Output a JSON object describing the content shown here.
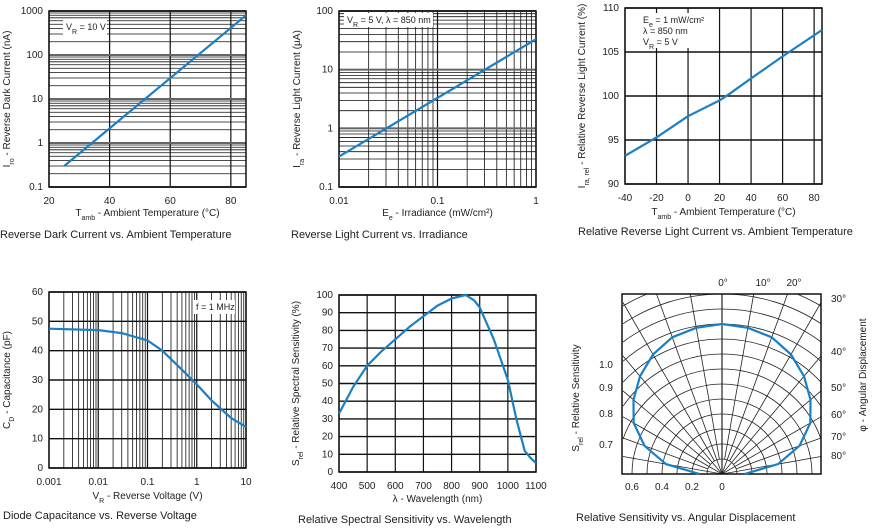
{
  "line_color": "#1b7fc4",
  "chart_data": [
    {
      "type": "line",
      "title": "Reverse Dark Current vs. Ambient Temperature",
      "xlabel": [
        {
          "t": "T"
        },
        {
          "t": "amb",
          "sub": true
        },
        {
          "t": " - Ambient Temperature (°C)"
        }
      ],
      "ylabel": [
        {
          "t": "I"
        },
        {
          "t": "ro",
          "sub": true
        },
        {
          "t": " - Reverse Dark Current (nA)"
        }
      ],
      "annotation": [
        [
          {
            "t": "V"
          },
          {
            "t": "R",
            "sub": true
          },
          {
            "t": " = 10 V"
          }
        ]
      ],
      "xscale": "linear",
      "yscale": "log",
      "xlim": [
        20,
        85
      ],
      "ylim": [
        0.1,
        1000
      ],
      "xticks": [
        20,
        40,
        60,
        80
      ],
      "xtick_labels": [
        "20",
        "40",
        "60",
        "80"
      ],
      "yticks": [
        0.1,
        1,
        10,
        100,
        1000
      ],
      "ytick_labels": [
        "0.1",
        "1",
        "10",
        "100",
        "1000"
      ],
      "grid": true,
      "x": [
        25,
        85
      ],
      "y": [
        0.3,
        800
      ]
    },
    {
      "type": "line",
      "title": "Reverse Light Current vs. Irradiance",
      "xlabel": [
        {
          "t": "E"
        },
        {
          "t": "e",
          "sub": true
        },
        {
          "t": " - Irradiance (mW/cm²)"
        }
      ],
      "ylabel": [
        {
          "t": "I"
        },
        {
          "t": "ra",
          "sub": true
        },
        {
          "t": " - Reverse Light Current (µA)"
        }
      ],
      "annotation": [
        [
          {
            "t": "V"
          },
          {
            "t": "R",
            "sub": true
          },
          {
            "t": " = 5 V, λ = 850 nm"
          }
        ]
      ],
      "xscale": "log",
      "yscale": "log",
      "xlim": [
        0.01,
        1
      ],
      "ylim": [
        0.1,
        100
      ],
      "xticks": [
        0.01,
        0.1,
        1
      ],
      "xtick_labels": [
        "0.01",
        "0.1",
        "1"
      ],
      "yticks": [
        0.1,
        1,
        10,
        100
      ],
      "ytick_labels": [
        "0.1",
        "1",
        "10",
        "100"
      ],
      "grid": true,
      "x": [
        0.01,
        1
      ],
      "y": [
        0.33,
        33
      ]
    },
    {
      "type": "line",
      "title": "Relative Reverse Light Current vs. Ambient Temperature",
      "xlabel": [
        {
          "t": "T"
        },
        {
          "t": "amb",
          "sub": true
        },
        {
          "t": " - Ambient Temperature (°C)"
        }
      ],
      "ylabel": [
        {
          "t": "I"
        },
        {
          "t": "ra, rel",
          "sub": true
        },
        {
          "t": " - Relative Reverse Light Current (%)"
        }
      ],
      "annotation": [
        [
          {
            "t": "E"
          },
          {
            "t": "e",
            "sub": true
          },
          {
            "t": " = 1 mW/cm²"
          }
        ],
        [
          {
            "t": "λ = 850 nm"
          }
        ],
        [
          {
            "t": "V"
          },
          {
            "t": "R",
            "sub": true
          },
          {
            "t": " = 5 V"
          }
        ]
      ],
      "xscale": "linear",
      "yscale": "linear",
      "xlim": [
        -40,
        85
      ],
      "ylim": [
        90,
        110
      ],
      "xticks": [
        -40,
        -20,
        0,
        20,
        40,
        60,
        80
      ],
      "xtick_labels": [
        "-40",
        "-20",
        "0",
        "20",
        "40",
        "60",
        "80"
      ],
      "yticks": [
        90,
        95,
        100,
        105,
        110
      ],
      "ytick_labels": [
        "90",
        "95",
        "100",
        "105",
        "110"
      ],
      "grid": true,
      "x": [
        -40,
        -20,
        0,
        20,
        26,
        40,
        60,
        85
      ],
      "y": [
        93.2,
        95.3,
        97.7,
        99.5,
        100.2,
        102,
        104.5,
        107.5
      ]
    },
    {
      "type": "line",
      "title": "Diode Capacitance vs. Reverse Voltage",
      "xlabel": [
        {
          "t": "V"
        },
        {
          "t": "R",
          "sub": true
        },
        {
          "t": " - Reverse Voltage (V)"
        }
      ],
      "ylabel": [
        {
          "t": "C"
        },
        {
          "t": "D",
          "sub": true
        },
        {
          "t": " - Capacitance (pF)"
        }
      ],
      "annotation": [
        [
          {
            "t": "f = 1 MHz"
          }
        ]
      ],
      "xscale": "log",
      "yscale": "linear",
      "xlim": [
        0.001,
        10
      ],
      "ylim": [
        0,
        60
      ],
      "xticks": [
        0.001,
        0.01,
        0.1,
        1,
        10
      ],
      "xtick_labels": [
        "0.001",
        "0.01",
        "0.1",
        "1",
        "10"
      ],
      "yticks": [
        0,
        10,
        20,
        30,
        40,
        50,
        60
      ],
      "ytick_labels": [
        "0",
        "10",
        "20",
        "30",
        "40",
        "50",
        "60"
      ],
      "grid": true,
      "x": [
        0.001,
        0.01,
        0.03,
        0.1,
        0.2,
        0.5,
        1,
        2,
        5,
        10
      ],
      "y": [
        47.5,
        47,
        46,
        43.5,
        40,
        33.5,
        28.5,
        23,
        17,
        14
      ]
    },
    {
      "type": "line",
      "title": "Relative Spectral Sensitivity vs. Wavelength",
      "xlabel": [
        {
          "t": "λ - Wavelength (nm)"
        }
      ],
      "ylabel": [
        {
          "t": "S"
        },
        {
          "t": "rel",
          "sub": true
        },
        {
          "t": " - Relative Spectral Sensitivity (%)"
        }
      ],
      "annotation": [],
      "xscale": "linear",
      "yscale": "linear",
      "xlim": [
        400,
        1100
      ],
      "ylim": [
        0,
        100
      ],
      "xticks": [
        400,
        500,
        600,
        700,
        800,
        900,
        1000,
        1100
      ],
      "xtick_labels": [
        "400",
        "500",
        "600",
        "700",
        "800",
        "900",
        "1000",
        "1100"
      ],
      "yticks": [
        0,
        10,
        20,
        30,
        40,
        50,
        60,
        70,
        80,
        90,
        100
      ],
      "ytick_labels": [
        "0",
        "10",
        "20",
        "30",
        "40",
        "50",
        "60",
        "70",
        "80",
        "90",
        "100"
      ],
      "grid": true,
      "x": [
        400,
        450,
        500,
        550,
        600,
        650,
        700,
        750,
        800,
        850,
        880,
        900,
        950,
        1000,
        1030,
        1060,
        1080,
        1100
      ],
      "y": [
        33,
        48,
        60,
        68,
        75,
        82,
        88,
        94,
        98,
        100,
        97,
        93,
        75,
        52,
        30,
        12,
        8,
        5
      ]
    },
    {
      "type": "polar",
      "title": "Relative Sensitivity vs. Angular Displacement",
      "ylabel_left": [
        {
          "t": "S"
        },
        {
          "t": "rel",
          "sub": true
        },
        {
          "t": " - Relative Sensitivity"
        }
      ],
      "ylabel_right": [
        {
          "t": "φ - Angular Displacement"
        }
      ],
      "radial_tick_labels": [
        "0.6",
        "0.4",
        "0.2",
        "0"
      ],
      "radial_ticks": [
        0.6,
        0.4,
        0.2,
        0
      ],
      "left_labels": [
        "1.0",
        "0.9",
        "0.8",
        "0.7"
      ],
      "top_angle_labels": [
        "0°",
        "10°",
        "20°"
      ],
      "right_angle_labels": [
        "30°",
        "40°",
        "50°",
        "60°",
        "70°",
        "80°"
      ],
      "grid": true,
      "angle_deg": [
        0,
        10,
        20,
        30,
        40,
        50,
        60,
        70,
        80,
        90
      ],
      "r": [
        1.0,
        0.99,
        0.97,
        0.92,
        0.85,
        0.77,
        0.68,
        0.55,
        0.38,
        0.15
      ]
    }
  ]
}
